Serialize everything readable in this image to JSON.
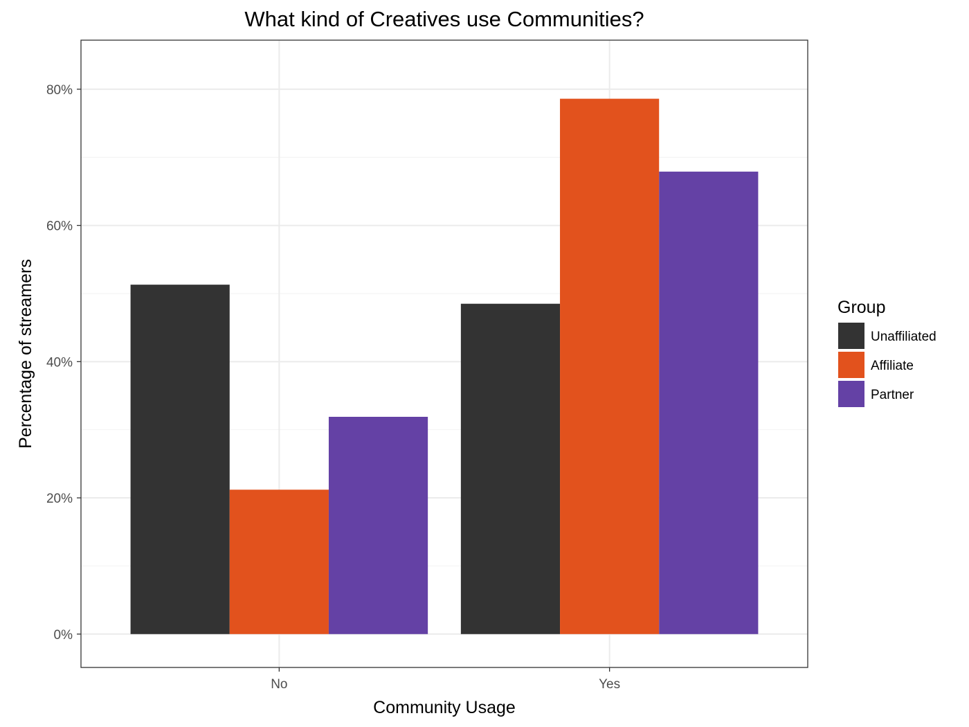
{
  "chart_data": {
    "type": "bar",
    "title": "What kind of Creatives use Communities?",
    "xlabel": "Community Usage",
    "ylabel": "Percentage of streamers",
    "categories": [
      "No",
      "Yes"
    ],
    "series": [
      {
        "name": "Unaffiliated",
        "color": "#333333",
        "values": [
          51.3,
          48.5
        ]
      },
      {
        "name": "Affiliate",
        "color": "#e2521d",
        "values": [
          21.2,
          78.6
        ]
      },
      {
        "name": "Partner",
        "color": "#6441a5",
        "values": [
          31.9,
          67.9
        ]
      }
    ],
    "ylim": [
      -4.9,
      87.2
    ],
    "yticks": [
      0,
      20,
      40,
      60,
      80
    ],
    "ytick_labels": [
      "0%",
      "20%",
      "40%",
      "60%",
      "80%"
    ],
    "grid": true,
    "legend": {
      "title": "Group",
      "position": "right"
    }
  }
}
